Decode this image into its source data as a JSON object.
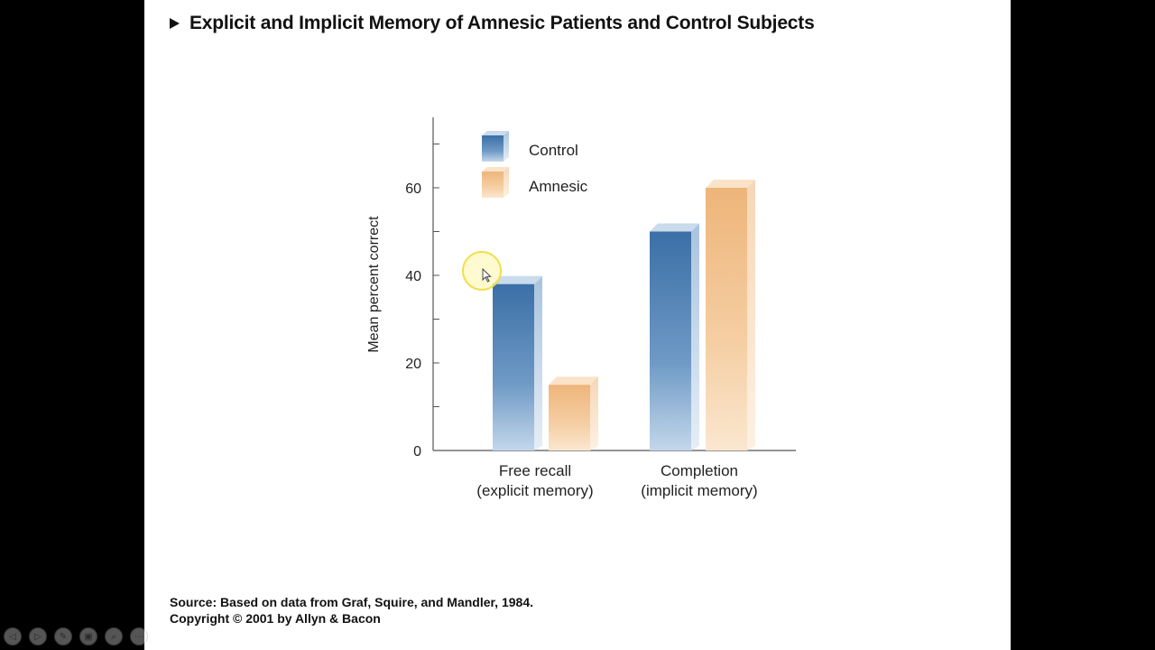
{
  "slide": {
    "title": "Explicit and Implicit Memory of Amnesic Patients and Control Subjects",
    "source": "Source: Based on data from Graf, Squire, and Mandler, 1984.",
    "copyright": "Copyright © 2001 by Allyn & Bacon"
  },
  "toolbar": {
    "buttons": [
      {
        "icon": "previous-icon",
        "glyph": "◁"
      },
      {
        "icon": "next-icon",
        "glyph": "▷"
      },
      {
        "icon": "pen-icon",
        "glyph": "✎"
      },
      {
        "icon": "slides-icon",
        "glyph": "▣"
      },
      {
        "icon": "zoom-icon",
        "glyph": "⌕"
      },
      {
        "icon": "more-icon",
        "glyph": "⋯"
      }
    ]
  },
  "chart_data": {
    "type": "bar",
    "title": "",
    "xlabel": "",
    "ylabel": "Mean percent correct",
    "ylim": [
      0,
      70
    ],
    "yticks": [
      0,
      20,
      40,
      60
    ],
    "grid": false,
    "legend_position": "top-left",
    "categories": [
      [
        "Free recall",
        "(explicit memory)"
      ],
      [
        "Completion",
        "(implicit memory)"
      ]
    ],
    "series": [
      {
        "name": "Control",
        "values": [
          38,
          50
        ],
        "color": "#4a7fb2"
      },
      {
        "name": "Amnesic",
        "values": [
          15,
          60
        ],
        "color": "#f2c08c"
      }
    ]
  }
}
